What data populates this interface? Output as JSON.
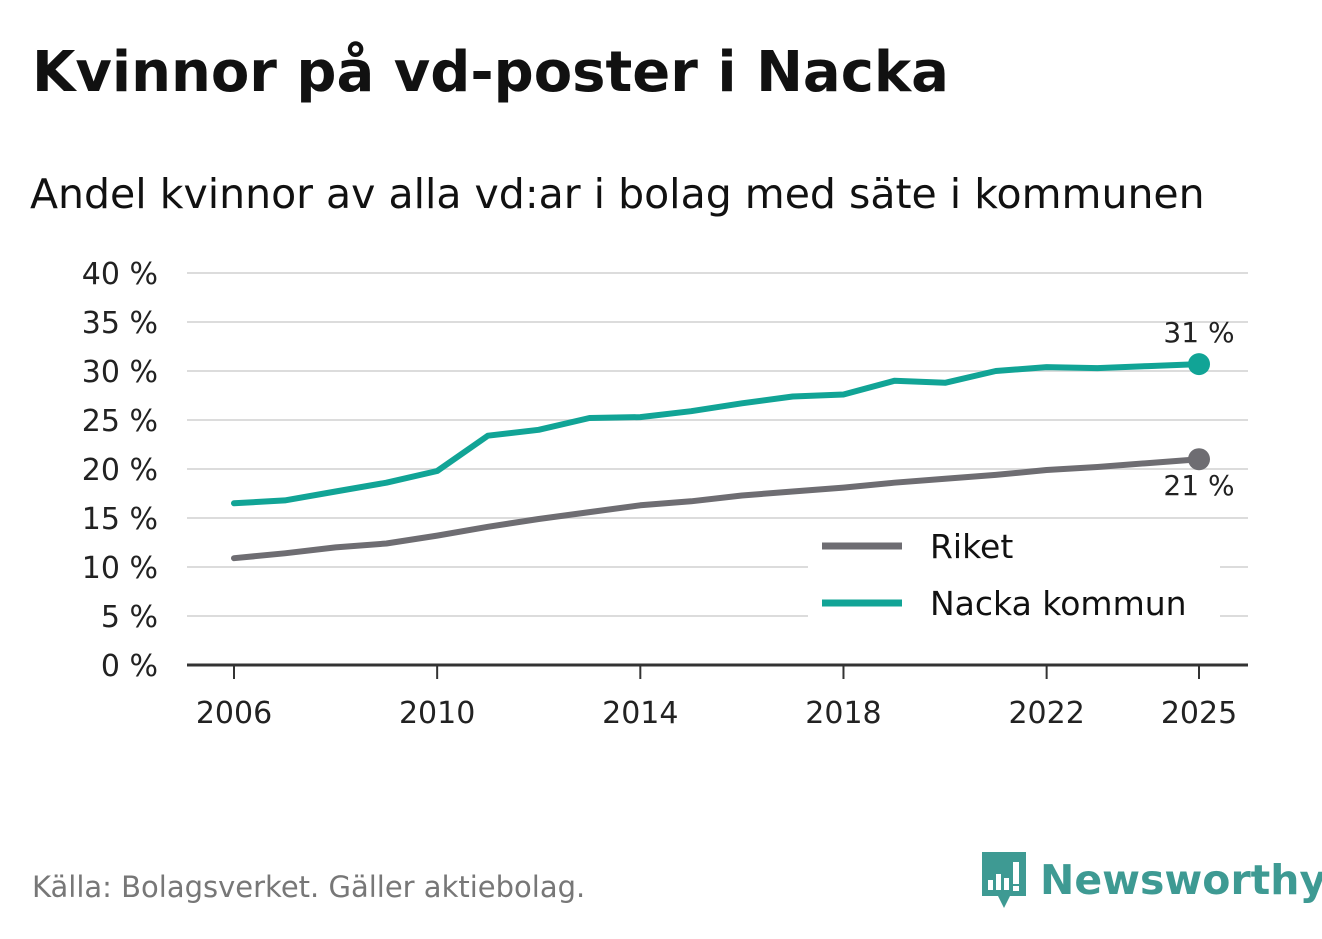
{
  "title": "Kvinnor på vd-poster i Nacka",
  "subtitle": "Andel kvinnor av alla vd:ar i bolag med säte i kommunen",
  "source": "Källa: Bolagsverket. Gäller aktiebolag.",
  "brand": {
    "name": "Newsworthy",
    "icon": "newsworthy-logo-icon",
    "color": "#3e9a93"
  },
  "chart_data": {
    "type": "line",
    "title": "Kvinnor på vd-poster i Nacka",
    "xlabel": "",
    "ylabel": "",
    "xlim": [
      2006,
      2025
    ],
    "ylim": [
      0,
      40
    ],
    "grid": true,
    "legend_position": "bottom-right",
    "y_ticks": [
      0,
      5,
      10,
      15,
      20,
      25,
      30,
      35,
      40
    ],
    "y_tick_labels": [
      "0 %",
      "5 %",
      "10 %",
      "15 %",
      "20 %",
      "25 %",
      "30 %",
      "35 %",
      "40 %"
    ],
    "x_ticks": [
      2006,
      2010,
      2014,
      2018,
      2022,
      2025
    ],
    "x_tick_labels": [
      "2006",
      "2010",
      "2014",
      "2018",
      "2022",
      "2025"
    ],
    "x": [
      2006,
      2007,
      2008,
      2009,
      2010,
      2011,
      2012,
      2013,
      2014,
      2015,
      2016,
      2017,
      2018,
      2019,
      2020,
      2021,
      2022,
      2023,
      2024,
      2025
    ],
    "series": [
      {
        "name": "Riket",
        "color": "#6e6d72",
        "values": [
          10.9,
          11.4,
          12.0,
          12.4,
          13.2,
          14.1,
          14.9,
          15.6,
          16.3,
          16.7,
          17.3,
          17.7,
          18.1,
          18.6,
          19.0,
          19.4,
          19.9,
          20.2,
          20.6,
          21.0
        ],
        "end_label": "21 %",
        "end_label_position": "below"
      },
      {
        "name": "Nacka kommun",
        "color": "#11a496",
        "values": [
          16.5,
          16.8,
          17.7,
          18.6,
          19.8,
          23.4,
          24.0,
          25.2,
          25.3,
          25.9,
          26.7,
          27.4,
          27.6,
          29.0,
          28.8,
          30.0,
          30.4,
          30.3,
          30.5,
          30.7
        ],
        "end_label": "31 %",
        "end_label_position": "above"
      }
    ]
  }
}
